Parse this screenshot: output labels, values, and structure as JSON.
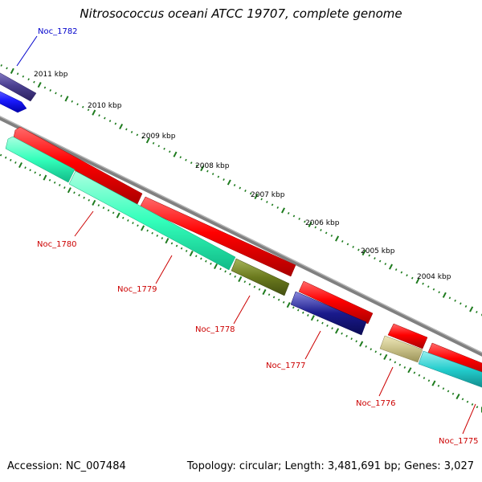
{
  "title": "Nitrosococcus oceani ATCC 19707, complete genome",
  "footer": {
    "accession": "Accession: NC_007484",
    "summary": "Topology: circular; Length: 3,481,691 bp; Genes: 3,027"
  },
  "scale_labels": [
    "2011 kbp",
    "2010 kbp",
    "2009 kbp",
    "2008 kbp",
    "2007 kbp",
    "2006 kbp",
    "2005 kbp",
    "2004 kbp"
  ],
  "gene_labels": [
    {
      "text": "Noc_1782",
      "color": "#0000cc"
    },
    {
      "text": "Noc_1780",
      "color": "#cc0000"
    },
    {
      "text": "Noc_1779",
      "color": "#cc0000"
    },
    {
      "text": "Noc_1778",
      "color": "#cc0000"
    },
    {
      "text": "Noc_1777",
      "color": "#cc0000"
    },
    {
      "text": "Noc_1776",
      "color": "#cc0000"
    },
    {
      "text": "Noc_1775",
      "color": "#cc0000"
    }
  ],
  "colors": {
    "backbone": "#808080",
    "cds_forward": "#ee0000",
    "tick": "#1e7b1e",
    "gene_teal": "#33ffbb",
    "gene_purple": "#4a3f8f",
    "gene_blue": "#1a1aff",
    "gene_olive": "#6b7a1e",
    "gene_navy": "#1a1a8c",
    "gene_khaki": "#c8c088",
    "gene_cyan": "#22cccc"
  }
}
